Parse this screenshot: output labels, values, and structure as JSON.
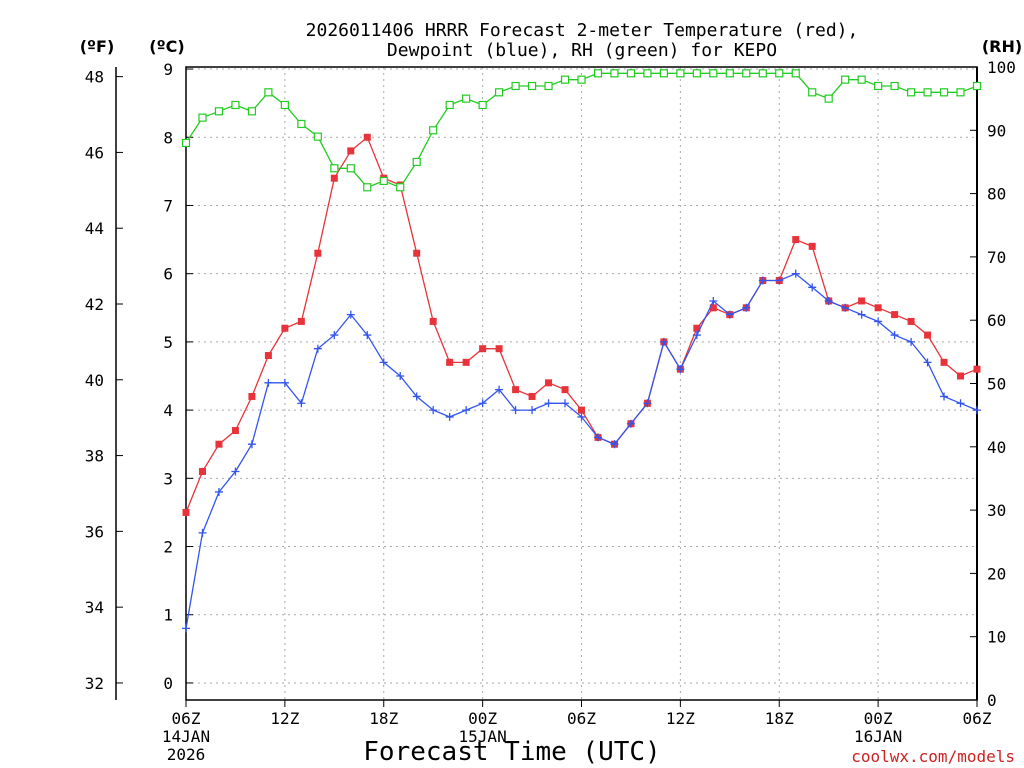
{
  "chart_data": {
    "type": "line",
    "title_line1": "2026011406 HRRR Forecast 2-meter Temperature (red),",
    "title_line2": "Dewpoint (blue), RH (green) for KEPO",
    "xlabel": "Forecast Time (UTC)",
    "credit": "coolwx.com/models",
    "units": {
      "fahrenheit": "(ºF)",
      "celsius": "(ºC)",
      "rh": "(RH)"
    },
    "celsius_range": [
      -0.25,
      9.03
    ],
    "rh_range": [
      0,
      100
    ],
    "celsius_ticks": [
      "0",
      "1",
      "2",
      "3",
      "4",
      "5",
      "6",
      "7",
      "8",
      "9"
    ],
    "fahrenheit_ticks": [
      "32",
      "34",
      "36",
      "38",
      "40",
      "42",
      "44",
      "46",
      "48"
    ],
    "rh_ticks": [
      "0",
      "10",
      "20",
      "30",
      "40",
      "50",
      "60",
      "70",
      "80",
      "90",
      "100"
    ],
    "x_ticks": [
      {
        "hour": 0,
        "label": "06Z",
        "sub1": "14JAN",
        "sub2": "2026"
      },
      {
        "hour": 6,
        "label": "12Z"
      },
      {
        "hour": 12,
        "label": "18Z"
      },
      {
        "hour": 18,
        "label": "00Z",
        "sub1": "15JAN"
      },
      {
        "hour": 24,
        "label": "06Z"
      },
      {
        "hour": 30,
        "label": "12Z"
      },
      {
        "hour": 36,
        "label": "18Z"
      },
      {
        "hour": 42,
        "label": "00Z",
        "sub1": "16JAN"
      },
      {
        "hour": 48,
        "label": "06Z"
      }
    ],
    "hours": [
      0,
      1,
      2,
      3,
      4,
      5,
      6,
      7,
      8,
      9,
      10,
      11,
      12,
      13,
      14,
      15,
      16,
      17,
      18,
      19,
      20,
      21,
      22,
      23,
      24,
      25,
      26,
      27,
      28,
      29,
      30,
      31,
      32,
      33,
      34,
      35,
      36,
      37,
      38,
      39,
      40,
      41,
      42,
      43,
      44,
      45,
      46,
      47,
      48
    ],
    "series": [
      {
        "name": "2-meter Temperature (°C)",
        "axis": "celsius",
        "color": "#e8333a",
        "marker": "filled-square",
        "values": [
          2.5,
          3.1,
          3.5,
          3.7,
          4.2,
          4.8,
          5.2,
          5.3,
          6.3,
          7.4,
          7.8,
          8.0,
          7.4,
          7.3,
          6.3,
          5.3,
          4.7,
          4.7,
          4.9,
          4.9,
          4.3,
          4.2,
          4.4,
          4.3,
          4.0,
          3.6,
          3.5,
          3.8,
          4.1,
          5.0,
          4.6,
          5.2,
          5.5,
          5.4,
          5.5,
          5.9,
          5.9,
          6.5,
          6.4,
          5.6,
          5.5,
          5.6,
          5.5,
          5.4,
          5.3,
          5.1,
          4.7,
          4.5,
          4.6
        ]
      },
      {
        "name": "Dewpoint (°C)",
        "axis": "celsius",
        "color": "#3355ee",
        "marker": "plus",
        "values": [
          0.8,
          2.2,
          2.8,
          3.1,
          3.5,
          4.4,
          4.4,
          4.1,
          4.9,
          5.1,
          5.4,
          5.1,
          4.7,
          4.5,
          4.2,
          4.0,
          3.9,
          4.0,
          4.1,
          4.3,
          4.0,
          4.0,
          4.1,
          4.1,
          3.9,
          3.6,
          3.5,
          3.8,
          4.1,
          5.0,
          4.6,
          5.1,
          5.6,
          5.4,
          5.5,
          5.9,
          5.9,
          6.0,
          5.8,
          5.6,
          5.5,
          5.4,
          5.3,
          5.1,
          5.0,
          4.7,
          4.2,
          4.1,
          4.0
        ]
      },
      {
        "name": "RH (%)",
        "axis": "rh",
        "color": "#22cc22",
        "marker": "open-square",
        "values": [
          88,
          92,
          93,
          94,
          93,
          96,
          94,
          91,
          89,
          84,
          84,
          81,
          82,
          81,
          85,
          90,
          94,
          95,
          94,
          96,
          97,
          97,
          97,
          98,
          98,
          99,
          99,
          99,
          99,
          99,
          99,
          99,
          99,
          99,
          99,
          99,
          99,
          99,
          96,
          95,
          98,
          98,
          97,
          97,
          96,
          96,
          96,
          96,
          97
        ]
      }
    ]
  }
}
